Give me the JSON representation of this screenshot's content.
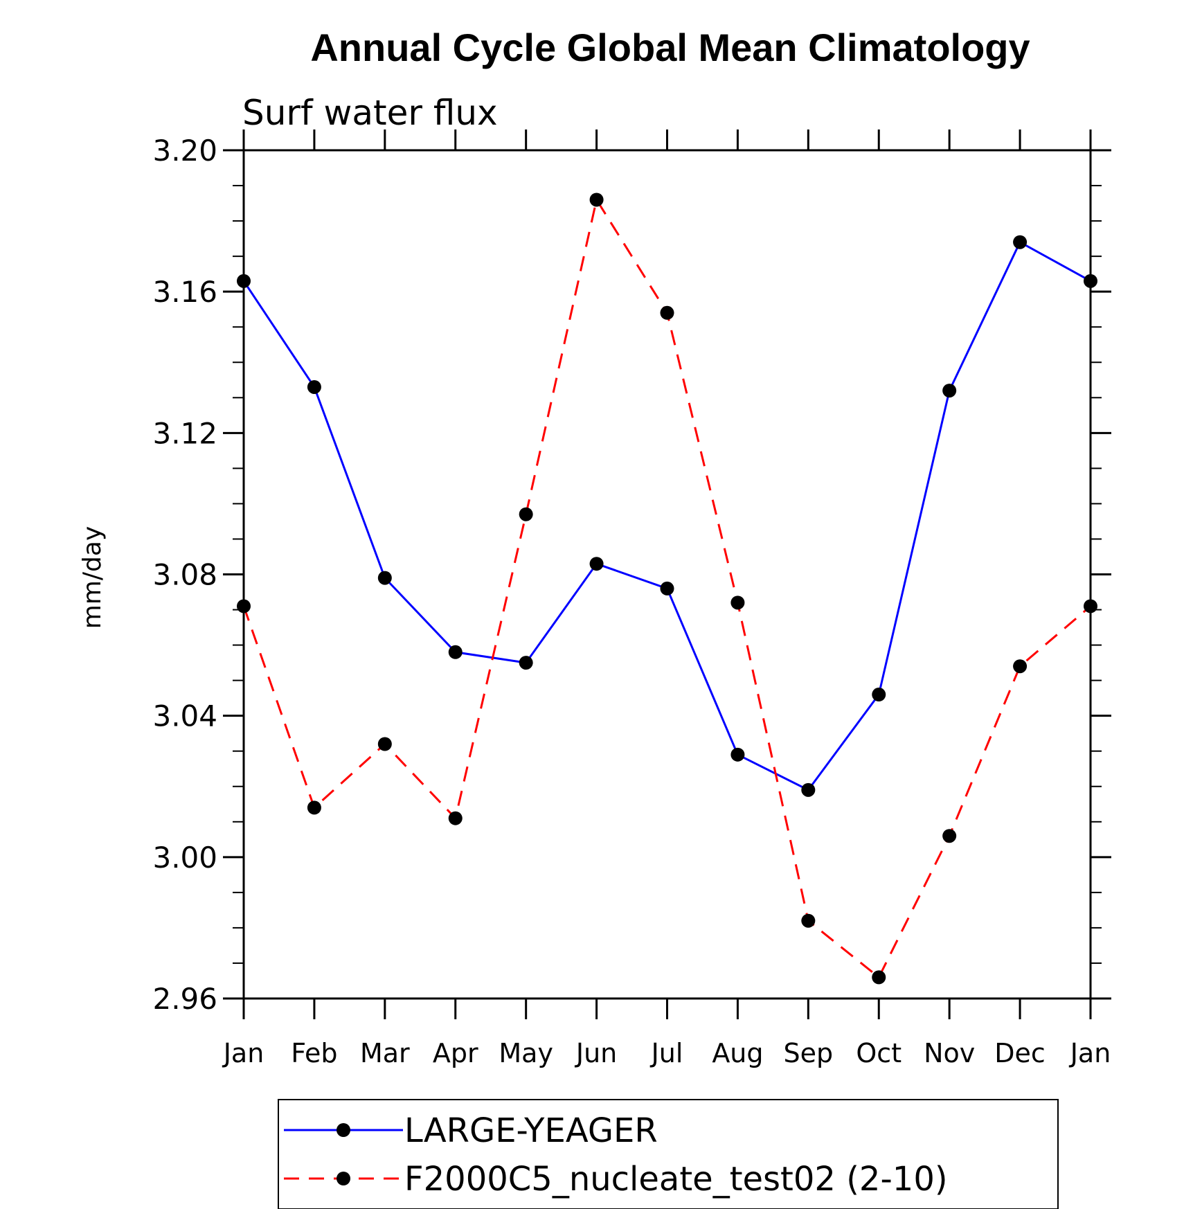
{
  "chart_data": {
    "type": "line",
    "title": "Annual Cycle Global Mean Climatology",
    "subtitle": "Surf water flux",
    "xlabel": "",
    "ylabel": "mm/day",
    "categories": [
      "Jan",
      "Feb",
      "Mar",
      "Apr",
      "May",
      "Jun",
      "Jul",
      "Aug",
      "Sep",
      "Oct",
      "Nov",
      "Dec",
      "Jan"
    ],
    "ylim": [
      2.96,
      3.2
    ],
    "yticks": [
      "2.96",
      "3.00",
      "3.04",
      "3.08",
      "3.12",
      "3.16",
      "3.20"
    ],
    "grid": false,
    "legend_position": "bottom",
    "series": [
      {
        "name": "LARGE-YEAGER",
        "color": "#0000ff",
        "dash": "solid",
        "marker": "filled-circle",
        "values": [
          3.163,
          3.133,
          3.079,
          3.058,
          3.055,
          3.083,
          3.076,
          3.029,
          3.019,
          3.046,
          3.132,
          3.174,
          3.163
        ]
      },
      {
        "name": "F2000C5_nucleate_test02 (2-10)",
        "color": "#ff0000",
        "dash": "dashed",
        "marker": "filled-circle",
        "values": [
          3.071,
          3.014,
          3.032,
          3.011,
          3.097,
          3.186,
          3.154,
          3.072,
          2.982,
          2.966,
          3.006,
          3.054,
          3.071
        ]
      }
    ]
  }
}
